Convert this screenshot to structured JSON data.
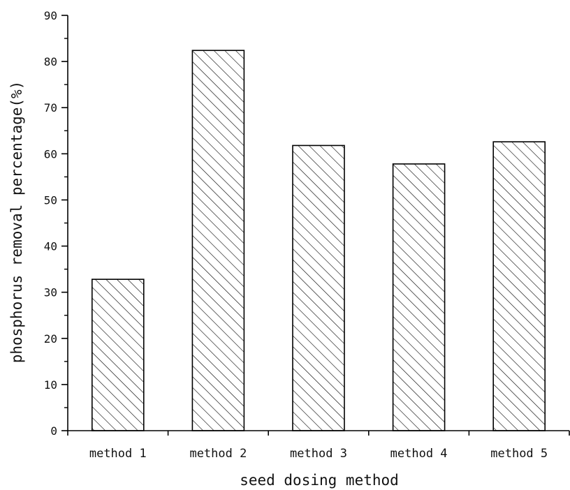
{
  "chart_data": {
    "type": "bar",
    "title": "",
    "xlabel": "seed dosing method",
    "ylabel": "phosphorus removal percentage(%)",
    "categories": [
      "method 1",
      "method 2",
      "method 3",
      "method 4",
      "method 5"
    ],
    "values": [
      32.8,
      82.4,
      61.8,
      57.8,
      62.6
    ],
    "ylim": [
      0,
      90
    ],
    "yticks": [
      0,
      10,
      20,
      30,
      40,
      50,
      60,
      70,
      80,
      90
    ],
    "ytick_labels": [
      "0",
      "10",
      "20",
      "30",
      "40",
      "50",
      "60",
      "70",
      "80",
      "90"
    ],
    "grid": false,
    "legend": "none",
    "bar_fill": "diagonal-hatch",
    "colors": {
      "bar_stroke": "#000000",
      "hatch": "#000000",
      "axis": "#000000",
      "background": "#ffffff"
    }
  }
}
